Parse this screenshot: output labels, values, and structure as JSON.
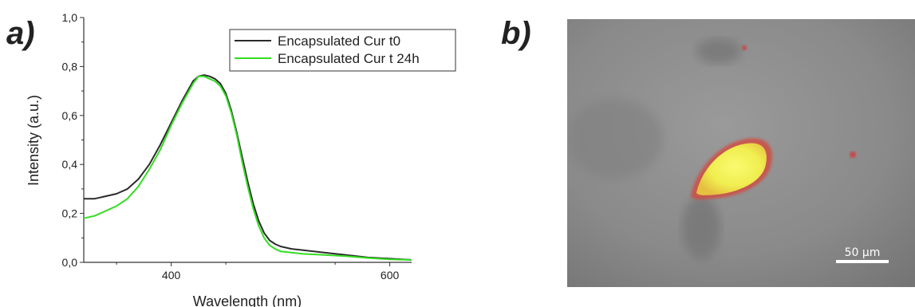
{
  "panels": {
    "a_label": "a)",
    "b_label": "b)"
  },
  "chart_data": {
    "type": "line",
    "title": "",
    "xlabel": "Wavelength (nm)",
    "ylabel": "Intensity (a.u.)",
    "xlim": [
      320,
      620
    ],
    "ylim": [
      0.0,
      1.0
    ],
    "xticks": [
      400,
      600
    ],
    "xtick_labels": [
      "400",
      "600"
    ],
    "yticks": [
      0.0,
      0.2,
      0.4,
      0.6,
      0.8,
      1.0
    ],
    "ytick_labels": [
      "0,0",
      "0,2",
      "0,4",
      "0,6",
      "0,8",
      "1,0"
    ],
    "grid": false,
    "legend_position": "top-right",
    "series": [
      {
        "name": "Encapsulated Cur t0",
        "color": "#2b2b2b",
        "x": [
          320,
          330,
          340,
          350,
          360,
          370,
          380,
          390,
          400,
          410,
          420,
          425,
          430,
          435,
          440,
          445,
          450,
          455,
          460,
          465,
          470,
          475,
          480,
          485,
          490,
          495,
          500,
          510,
          520,
          540,
          560,
          580,
          600,
          620
        ],
        "y": [
          0.26,
          0.26,
          0.27,
          0.28,
          0.3,
          0.34,
          0.4,
          0.48,
          0.57,
          0.66,
          0.74,
          0.76,
          0.765,
          0.76,
          0.75,
          0.73,
          0.69,
          0.62,
          0.53,
          0.43,
          0.33,
          0.24,
          0.17,
          0.12,
          0.09,
          0.075,
          0.065,
          0.055,
          0.05,
          0.04,
          0.03,
          0.02,
          0.015,
          0.01
        ]
      },
      {
        "name": "Encapsulated Cur t 24h",
        "color": "#33dd22",
        "x": [
          320,
          330,
          340,
          350,
          360,
          370,
          380,
          390,
          400,
          410,
          420,
          425,
          430,
          435,
          440,
          445,
          450,
          455,
          460,
          465,
          470,
          475,
          480,
          485,
          490,
          495,
          500,
          510,
          520,
          540,
          560,
          580,
          600,
          620
        ],
        "y": [
          0.18,
          0.19,
          0.21,
          0.23,
          0.26,
          0.31,
          0.38,
          0.46,
          0.56,
          0.65,
          0.73,
          0.76,
          0.76,
          0.75,
          0.74,
          0.72,
          0.68,
          0.61,
          0.52,
          0.41,
          0.31,
          0.22,
          0.15,
          0.1,
          0.07,
          0.055,
          0.045,
          0.04,
          0.035,
          0.03,
          0.025,
          0.018,
          0.012,
          0.01
        ]
      }
    ]
  },
  "micrograph": {
    "scale_bar_label": "50 μm",
    "background_color": "#8c8c8c",
    "cell_color": "#f4f25a",
    "edge_color": "#d8443a"
  }
}
